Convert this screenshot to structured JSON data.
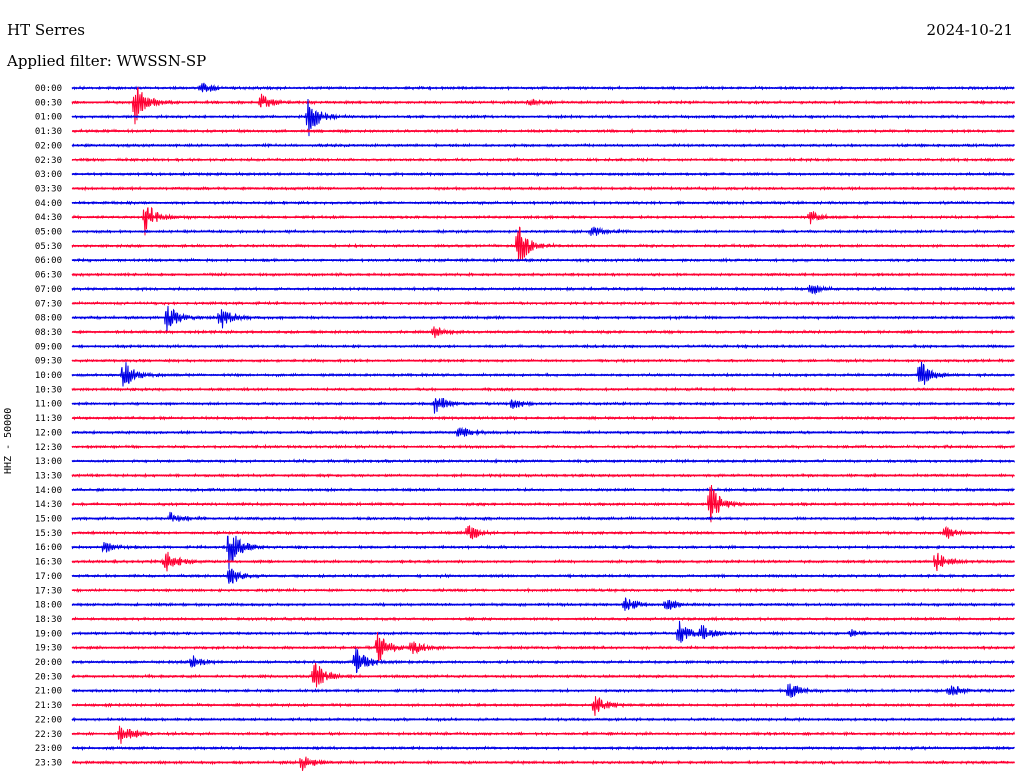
{
  "header": {
    "station": "HT Serres",
    "date": "2024-10-21",
    "filter": "Applied filter: WWSSN-SP"
  },
  "colors": {
    "odd": "#0000e6",
    "even": "#ff0033"
  },
  "chart_data": {
    "type": "line",
    "title": "HT Serres",
    "ylabel": "HHZ - 50000",
    "grid": false,
    "legend": "none",
    "rows": [
      "00:00",
      "00:30",
      "01:00",
      "01:30",
      "02:00",
      "02:30",
      "03:00",
      "03:30",
      "04:00",
      "04:30",
      "05:00",
      "05:30",
      "06:00",
      "06:30",
      "07:00",
      "07:30",
      "08:00",
      "08:30",
      "09:00",
      "09:30",
      "10:00",
      "10:30",
      "11:00",
      "11:30",
      "12:00",
      "12:30",
      "13:00",
      "13:30",
      "14:00",
      "14:30",
      "15:00",
      "15:30",
      "16:00",
      "16:30",
      "17:00",
      "17:30",
      "18:00",
      "18:30",
      "19:00",
      "19:30",
      "20:00",
      "20:30",
      "21:00",
      "21:30",
      "22:00",
      "22:30",
      "23:00",
      "23:30"
    ],
    "x_unit": "minutes after row start",
    "x_range": [
      0,
      30
    ],
    "events": [
      {
        "row": "00:00",
        "minute": 4.1,
        "amplitude": 0.3
      },
      {
        "row": "00:30",
        "minute": 2.0,
        "amplitude": 1.0
      },
      {
        "row": "00:30",
        "minute": 6.0,
        "amplitude": 0.4
      },
      {
        "row": "00:30",
        "minute": 14.5,
        "amplitude": 0.15
      },
      {
        "row": "01:00",
        "minute": 7.5,
        "amplitude": 1.0
      },
      {
        "row": "04:30",
        "minute": 2.3,
        "amplitude": 0.9
      },
      {
        "row": "04:30",
        "minute": 23.5,
        "amplitude": 0.3
      },
      {
        "row": "05:30",
        "minute": 14.2,
        "amplitude": 1.0
      },
      {
        "row": "05:00",
        "minute": 16.5,
        "amplitude": 0.3
      },
      {
        "row": "07:00",
        "minute": 23.5,
        "amplitude": 0.3
      },
      {
        "row": "08:00",
        "minute": 3.0,
        "amplitude": 0.7
      },
      {
        "row": "08:00",
        "minute": 4.7,
        "amplitude": 0.6
      },
      {
        "row": "08:30",
        "minute": 11.5,
        "amplitude": 0.3
      },
      {
        "row": "10:00",
        "minute": 1.6,
        "amplitude": 0.9
      },
      {
        "row": "10:00",
        "minute": 27.0,
        "amplitude": 0.7
      },
      {
        "row": "11:00",
        "minute": 11.5,
        "amplitude": 0.6
      },
      {
        "row": "11:00",
        "minute": 14.0,
        "amplitude": 0.3
      },
      {
        "row": "12:00",
        "minute": 12.3,
        "amplitude": 0.3
      },
      {
        "row": "14:30",
        "minute": 20.3,
        "amplitude": 1.0
      },
      {
        "row": "15:00",
        "minute": 3.1,
        "amplitude": 0.3
      },
      {
        "row": "15:30",
        "minute": 12.6,
        "amplitude": 0.4
      },
      {
        "row": "15:30",
        "minute": 27.8,
        "amplitude": 0.3
      },
      {
        "row": "16:00",
        "minute": 1.0,
        "amplitude": 0.3
      },
      {
        "row": "16:00",
        "minute": 5.0,
        "amplitude": 1.0
      },
      {
        "row": "16:30",
        "minute": 2.9,
        "amplitude": 0.7
      },
      {
        "row": "16:30",
        "minute": 27.5,
        "amplitude": 0.5
      },
      {
        "row": "17:00",
        "minute": 5.0,
        "amplitude": 0.5
      },
      {
        "row": "18:00",
        "minute": 17.6,
        "amplitude": 0.4
      },
      {
        "row": "18:00",
        "minute": 18.9,
        "amplitude": 0.3
      },
      {
        "row": "19:00",
        "minute": 19.3,
        "amplitude": 0.6
      },
      {
        "row": "19:00",
        "minute": 20.0,
        "amplitude": 0.4
      },
      {
        "row": "19:00",
        "minute": 24.8,
        "amplitude": 0.2
      },
      {
        "row": "19:30",
        "minute": 9.7,
        "amplitude": 0.8
      },
      {
        "row": "19:30",
        "minute": 10.8,
        "amplitude": 0.4
      },
      {
        "row": "20:00",
        "minute": 3.8,
        "amplitude": 0.3
      },
      {
        "row": "20:00",
        "minute": 9.0,
        "amplitude": 0.8
      },
      {
        "row": "20:30",
        "minute": 7.7,
        "amplitude": 0.8
      },
      {
        "row": "21:00",
        "minute": 22.8,
        "amplitude": 0.4
      },
      {
        "row": "21:00",
        "minute": 27.9,
        "amplitude": 0.4
      },
      {
        "row": "21:30",
        "minute": 16.6,
        "amplitude": 0.6
      },
      {
        "row": "22:30",
        "minute": 1.5,
        "amplitude": 0.7
      },
      {
        "row": "23:30",
        "minute": 7.3,
        "amplitude": 0.4
      }
    ]
  }
}
